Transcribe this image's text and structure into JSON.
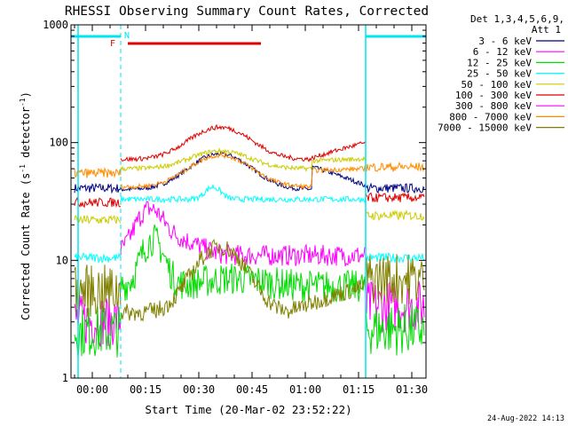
{
  "chart_data": {
    "type": "line",
    "title": "RHESSI Observing Summary Count Rates, Corrected",
    "xlabel": "Start Time (20-Mar-02 23:52:22)",
    "ylabel_main": "Corrected Count Rate (s",
    "ylabel_sup1": "-1",
    "ylabel_mid": " detector",
    "ylabel_sup2": "-1",
    "ylabel_end": ")",
    "footer_date": "24-Aug-2022 14:13",
    "y_scale": "log",
    "ylim": [
      1,
      1000
    ],
    "xlim_min": [
      -6,
      94
    ],
    "x_ticks": [
      {
        "min": 0,
        "label": "00:00"
      },
      {
        "min": 15,
        "label": "00:15"
      },
      {
        "min": 30,
        "label": "00:30"
      },
      {
        "min": 45,
        "label": "00:45"
      },
      {
        "min": 60,
        "label": "01:00"
      },
      {
        "min": 75,
        "label": "01:15"
      },
      {
        "min": 90,
        "label": "01:30"
      }
    ],
    "y_ticks": [
      {
        "value": 1,
        "label": "1"
      },
      {
        "value": 10,
        "label": "10"
      },
      {
        "value": 100,
        "label": "100"
      },
      {
        "value": 1000,
        "label": "1000"
      }
    ],
    "legend": {
      "header1": "Det 1,3,4,5,6,9,",
      "header2": "Att 1",
      "placement": "right"
    },
    "annotations": {
      "F_label": "F",
      "N_label": "N",
      "flare_bar": [
        10,
        47.5
      ],
      "night_boundaries": [
        8,
        77
      ],
      "saa_boundaries": [
        -4,
        77,
        94
      ],
      "color_F": "#dd0000",
      "color_night": "#00e5ee"
    },
    "series": [
      {
        "name": "3 - 6 keV",
        "color": "#000080",
        "style": "flat_hump",
        "before": 41,
        "base": 40,
        "peak": 80,
        "dip": 62,
        "end": 43,
        "after": 41
      },
      {
        "name": "6 - 12 keV",
        "color": "#ff00ff",
        "style": "early_peak",
        "before": 3.1,
        "base": 11,
        "peak": 26,
        "late": 5,
        "after": 4.1
      },
      {
        "name": "12 - 25 keV",
        "color": "#00dd00",
        "style": "noisy_peak",
        "before": 2.5,
        "base": 6,
        "peak": 15,
        "late": 7,
        "after": 2.6
      },
      {
        "name": "25 - 50 keV",
        "color": "#00ffff",
        "style": "flat",
        "before": 10.5,
        "base": 33,
        "peak": 42,
        "after": 10.5
      },
      {
        "name": "50 - 100 keV",
        "color": "#cccc00",
        "style": "flat_hump",
        "before": 22,
        "base": 60,
        "peak": 85,
        "dip": 70,
        "end": 73,
        "after": 24
      },
      {
        "name": "100 - 300 keV",
        "color": "#dd0000",
        "style": "flat_hump",
        "before": 31,
        "base": 72,
        "peak": 135,
        "dip": 74,
        "end": 100,
        "after": 34
      },
      {
        "name": "300 - 800 keV",
        "color": "#ff00ff",
        "style": "hidden",
        "before": 0,
        "after": 0
      },
      {
        "name": "800 - 7000 keV",
        "color": "#ff8c00",
        "style": "flat_hump",
        "before": 55,
        "base": 42,
        "peak": 78,
        "dip": 58,
        "end": 60,
        "after": 62
      },
      {
        "name": "7000 - 15000 keV",
        "color": "#808000",
        "style": "slow_hump",
        "before": 5.5,
        "base": 3.6,
        "peak": 13,
        "late": 6,
        "after": 7
      }
    ]
  }
}
